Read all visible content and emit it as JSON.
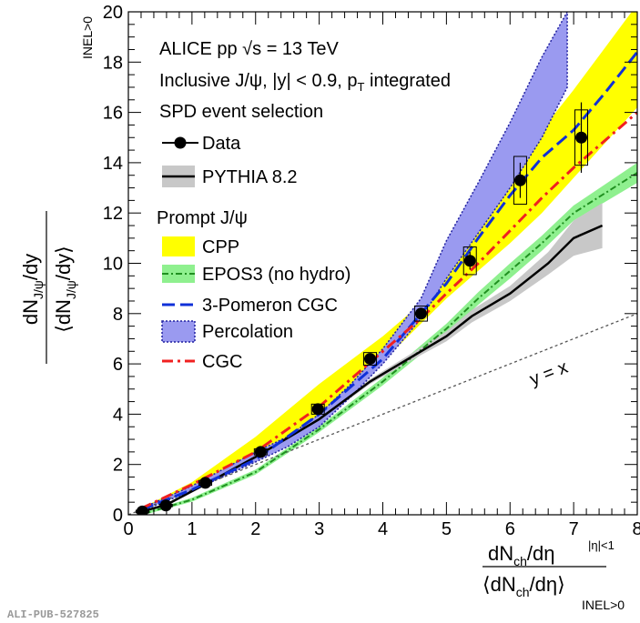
{
  "chart_data": {
    "type": "line",
    "xlim": [
      0,
      8
    ],
    "ylim": [
      0,
      20
    ],
    "xticks": [
      0,
      1,
      2,
      3,
      4,
      5,
      6,
      7,
      8
    ],
    "yticks": [
      0,
      2,
      4,
      6,
      8,
      10,
      12,
      14,
      16,
      18,
      20
    ],
    "grid": false,
    "legend_placement": "top-left",
    "ylabel": {
      "main": "dN",
      "sub1": "J/ψ",
      "mid": "/dy",
      "den": "⟨dN",
      "sub2": "J/ψ",
      "den_end": "/dy⟩",
      "side": "INEL>0"
    },
    "xlabel": {
      "num": "dN",
      "num_sub": "ch",
      "num_end": "/dη",
      "num_sup": "|η|<1",
      "den": "⟨dN",
      "den_sub": "ch",
      "den_end": "/dη⟩",
      "side": "INEL>0"
    },
    "header": {
      "line1": "ALICE pp √s = 13 TeV",
      "line2": "Inclusive J/ψ, |y| < 0.9, p",
      "line2_sub": "T",
      "line2_end": " integrated",
      "line3": "SPD event selection"
    },
    "legend": {
      "data": "Data",
      "pythia": "PYTHIA 8.2",
      "prompt_header": "Prompt J/ψ",
      "cpp": "CPP",
      "epos": "EPOS3 (no hydro)",
      "pomeron": "3-Pomeron CGC",
      "percolation": "Percolation",
      "cgc": "CGC"
    },
    "diagonal_label": "y = x",
    "watermark": "ALI-PUB-527825",
    "colors": {
      "cpp": "#ffff00",
      "epos_band": "#8ff08f",
      "epos_line": "#209020",
      "pomeron": "#1030d8",
      "percolation": "#9a9af0",
      "percolation_edge": "#2020a0",
      "cgc": "#f02020",
      "pythia_band": "#c8c8c8",
      "diagonal": "#555555"
    },
    "series": [
      {
        "name": "Data",
        "kind": "points",
        "x": [
          0.22,
          0.59,
          1.21,
          2.08,
          2.98,
          3.8,
          4.6,
          5.37,
          6.16,
          7.12
        ],
        "y": [
          0.13,
          0.37,
          1.27,
          2.5,
          4.2,
          6.2,
          8.0,
          10.1,
          13.3,
          15.0
        ],
        "syst": [
          0.05,
          0.05,
          0.1,
          0.12,
          0.2,
          0.25,
          0.3,
          0.55,
          0.95,
          1.1
        ],
        "stat": [
          0.02,
          0.03,
          0.05,
          0.06,
          0.1,
          0.15,
          0.2,
          0.35,
          0.7,
          1.4
        ]
      },
      {
        "name": "PYTHIA 8.2",
        "kind": "line_band",
        "x": [
          0.2,
          0.6,
          1.2,
          2.0,
          3.0,
          3.8,
          4.6,
          5.0,
          5.4,
          6.0,
          6.6,
          7.0,
          7.45
        ],
        "y": [
          0.12,
          0.4,
          1.2,
          2.3,
          3.8,
          5.3,
          6.5,
          7.1,
          7.9,
          8.8,
          10.0,
          11.0,
          11.5
        ],
        "band_half": [
          0.02,
          0.03,
          0.05,
          0.06,
          0.08,
          0.1,
          0.15,
          0.2,
          0.25,
          0.3,
          0.45,
          0.7,
          0.9
        ]
      },
      {
        "name": "CPP",
        "kind": "band",
        "x": [
          0.2,
          1.0,
          2.0,
          3.0,
          4.0,
          4.6,
          5.0,
          5.5,
          6.0,
          6.5,
          7.0,
          7.5,
          8.0
        ],
        "lo": [
          0.15,
          0.95,
          2.1,
          3.9,
          6.1,
          7.6,
          8.6,
          9.7,
          10.8,
          12.0,
          13.4,
          14.8,
          16.2
        ],
        "hi": [
          0.25,
          1.3,
          3.1,
          5.2,
          7.1,
          8.4,
          9.9,
          11.7,
          13.5,
          15.3,
          16.9,
          18.6,
          20.3
        ]
      },
      {
        "name": "EPOS3 (no hydro)",
        "kind": "line_band",
        "x": [
          0.25,
          1.0,
          2.0,
          3.0,
          4.0,
          5.0,
          5.5,
          6.0,
          6.5,
          7.0,
          7.5,
          8.0
        ],
        "y": [
          0.05,
          0.6,
          1.7,
          3.4,
          5.3,
          7.4,
          8.6,
          9.7,
          10.8,
          12.0,
          12.8,
          13.6
        ],
        "band_half": [
          0.05,
          0.08,
          0.1,
          0.12,
          0.15,
          0.2,
          0.25,
          0.3,
          0.3,
          0.3,
          0.35,
          0.4
        ]
      },
      {
        "name": "3-Pomeron CGC",
        "kind": "line",
        "x": [
          0.2,
          1.0,
          2.0,
          3.0,
          4.0,
          4.6,
          5.0,
          5.5,
          6.0,
          6.5,
          7.0,
          7.5,
          8.0
        ],
        "y": [
          0.2,
          1.0,
          2.2,
          4.0,
          6.2,
          8.0,
          9.2,
          11.0,
          12.7,
          14.2,
          15.3,
          16.8,
          18.4
        ]
      },
      {
        "name": "Percolation",
        "kind": "band",
        "x": [
          0.2,
          1.0,
          2.0,
          2.5,
          3.0,
          3.5,
          4.0,
          4.6,
          5.0,
          5.5,
          6.0,
          6.5,
          6.9
        ],
        "lo": [
          0.15,
          0.95,
          2.1,
          2.7,
          3.5,
          4.7,
          6.0,
          7.8,
          9.4,
          11.2,
          13.0,
          15.0,
          17.0
        ],
        "hi": [
          0.25,
          1.15,
          2.5,
          3.1,
          4.0,
          5.2,
          6.6,
          8.6,
          10.9,
          13.2,
          15.6,
          18.2,
          20.0
        ]
      },
      {
        "name": "CGC",
        "kind": "line",
        "x": [
          0.2,
          1.0,
          2.0,
          3.0,
          4.0,
          4.6,
          5.0,
          5.5,
          6.0,
          6.5,
          7.0,
          7.5,
          8.0
        ],
        "y": [
          0.25,
          1.2,
          2.5,
          4.3,
          6.5,
          7.8,
          8.8,
          10.0,
          11.3,
          12.6,
          13.8,
          14.9,
          16.0
        ]
      },
      {
        "name": "y = x",
        "kind": "diagonal",
        "x": [
          0,
          8
        ],
        "y": [
          0,
          8
        ]
      }
    ]
  }
}
